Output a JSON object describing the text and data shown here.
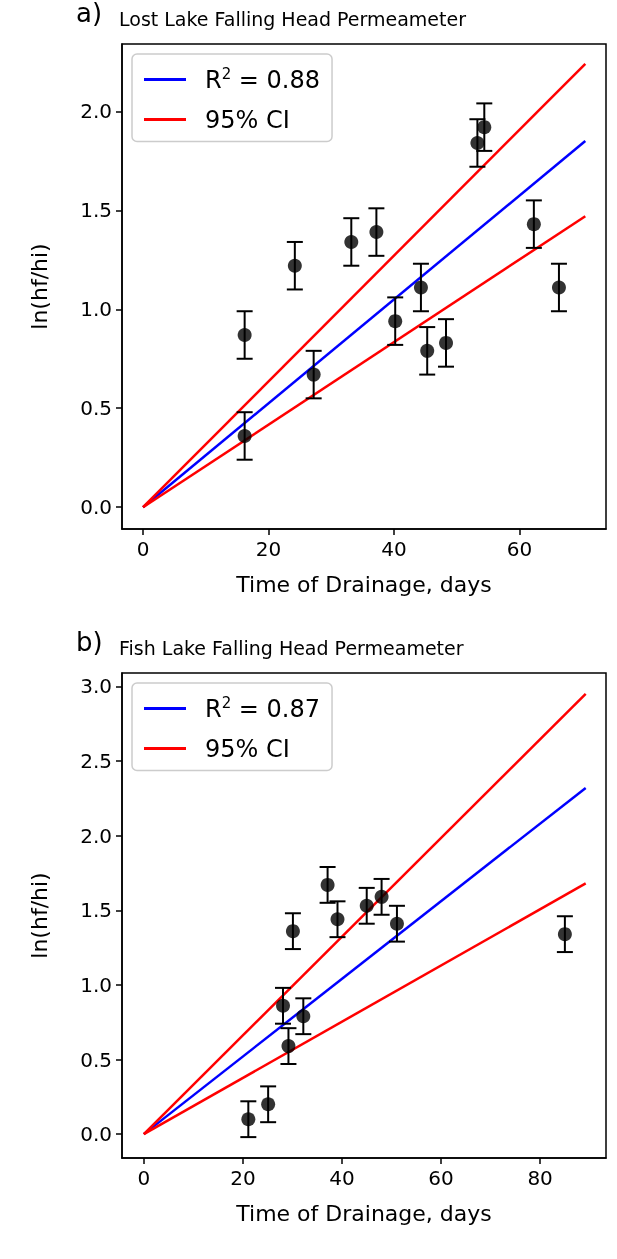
{
  "chart_data": [
    {
      "type": "scatter",
      "title": "Lost Lake Falling Head Permeameter",
      "annotations": [
        "a)"
      ],
      "xlabel": "Time of Drainage, days",
      "ylabel": "ln(hf/hi)",
      "xlim": [
        -3.35,
        73.8
      ],
      "xticks": [
        0,
        20,
        40,
        60
      ],
      "ylim": [
        -0.11,
        2.34
      ],
      "yticks": [
        {
          "value": 0,
          "label": "0.0"
        },
        {
          "value": 0.5,
          "label": "0.5"
        },
        {
          "value": 1,
          "label": "1.0"
        },
        {
          "value": 1.5,
          "label": "1.5"
        },
        {
          "value": 2,
          "label": "2.0"
        }
      ],
      "grid": false,
      "legend": "top left",
      "series": [
        {
          "marker": "circle",
          "color": "#000000",
          "x": [
            16.2,
            16.2,
            24.2,
            27.2,
            33.2,
            37.2,
            40.2,
            44.3,
            45.3,
            48.3,
            53.3,
            54.4,
            62.3,
            66.3
          ],
          "values": [
            0.87,
            0.36,
            1.22,
            0.67,
            1.34,
            1.39,
            0.94,
            1.11,
            0.79,
            0.83,
            1.84,
            1.92,
            1.43,
            1.11
          ],
          "errors": [
            0.12,
            0.12,
            0.12,
            0.12,
            0.12,
            0.12,
            0.12,
            0.12,
            0.12,
            0.12,
            0.12,
            0.12,
            0.12,
            0.12
          ]
        },
        {
          "type": "line",
          "name": "R$^{2}$ = 0.88",
          "color": "#0000ff",
          "x": [
            0,
            70.5
          ],
          "values": [
            0,
            1.85
          ]
        },
        {
          "type": "line",
          "name": "95% CI",
          "color": "#ff0000",
          "x": [
            0,
            70.5
          ],
          "values": [
            0,
            2.24
          ]
        },
        {
          "type": "line",
          "color": "#ff0000",
          "x": [
            0,
            70.5
          ],
          "values": [
            0,
            1.47
          ]
        }
      ]
    },
    {
      "type": "scatter",
      "title": "Fish Lake Falling Head Permeameter",
      "annotations": [
        "b)"
      ],
      "xlabel": "Time of Drainage, days",
      "ylabel": "ln(hf/hi)",
      "xlim": [
        -4.4,
        93.3
      ],
      "xticks": [
        0,
        20,
        40,
        60,
        80
      ],
      "ylim": [
        -0.16,
        3.09
      ],
      "yticks": [
        {
          "value": 0,
          "label": "0.0"
        },
        {
          "value": 0.5,
          "label": "0.5"
        },
        {
          "value": 1,
          "label": "1.0"
        },
        {
          "value": 1.5,
          "label": "1.5"
        },
        {
          "value": 2,
          "label": "2.0"
        },
        {
          "value": 2.5,
          "label": "2.5"
        },
        {
          "value": 3,
          "label": "3.0"
        }
      ],
      "grid": false,
      "legend": "top left",
      "series": [
        {
          "marker": "circle",
          "color": "#000000",
          "x": [
            21.1,
            25.1,
            28.1,
            29.2,
            30.1,
            32.2,
            37.1,
            39.1,
            45.0,
            48.0,
            51.1,
            85.0
          ],
          "values": [
            0.1,
            0.2,
            0.86,
            0.59,
            1.36,
            0.79,
            1.67,
            1.44,
            1.53,
            1.59,
            1.41,
            1.34
          ],
          "errors": [
            0.12,
            0.12,
            0.12,
            0.12,
            0.12,
            0.12,
            0.12,
            0.12,
            0.12,
            0.12,
            0.12,
            0.12
          ]
        },
        {
          "type": "line",
          "name": "R$^{2}$ = 0.87",
          "color": "#0000ff",
          "x": [
            0,
            89.2
          ],
          "values": [
            0,
            2.32
          ]
        },
        {
          "type": "line",
          "name": "95% CI",
          "color": "#ff0000",
          "x": [
            0,
            89.2
          ],
          "values": [
            0,
            2.95
          ]
        },
        {
          "type": "line",
          "color": "#ff0000",
          "x": [
            0,
            89.2
          ],
          "values": [
            0,
            1.68
          ]
        }
      ]
    }
  ]
}
